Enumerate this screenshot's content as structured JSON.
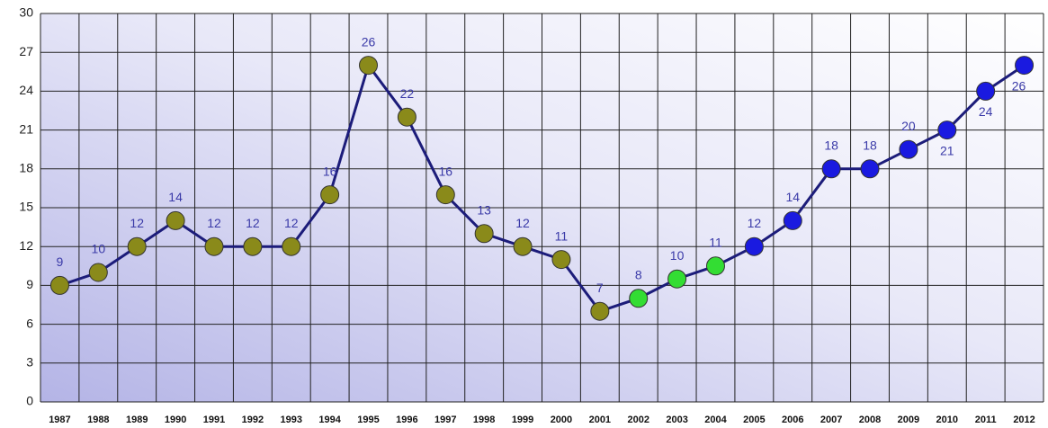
{
  "chart_data": {
    "type": "line",
    "categories": [
      "1987",
      "1988",
      "1989",
      "1990",
      "1991",
      "1992",
      "1993",
      "1994",
      "1995",
      "1996",
      "1997",
      "1998",
      "1999",
      "2000",
      "2001",
      "2002",
      "2003",
      "2004",
      "2005",
      "2006",
      "2007",
      "2008",
      "2009",
      "2010",
      "2011",
      "2012"
    ],
    "values": [
      9,
      10,
      12,
      14,
      12,
      12,
      12,
      16,
      26,
      22,
      16,
      13,
      12,
      11,
      7,
      8,
      9.5,
      10.5,
      12,
      14,
      18,
      18,
      19.5,
      21,
      24,
      26
    ],
    "value_labels": [
      "9",
      "10",
      "12",
      "14",
      "12",
      "12",
      "12",
      "16",
      "26",
      "22",
      "16",
      "13",
      "12",
      "11",
      "7",
      "8",
      "10",
      "11",
      "12",
      "14",
      "18",
      "18",
      "20",
      "21",
      "24",
      "26"
    ],
    "color": "#1c1c7a",
    "point_colors": [
      "#8a8a1a",
      "#8a8a1a",
      "#8a8a1a",
      "#8a8a1a",
      "#8a8a1a",
      "#8a8a1a",
      "#8a8a1a",
      "#8a8a1a",
      "#8a8a1a",
      "#8a8a1a",
      "#8a8a1a",
      "#8a8a1a",
      "#8a8a1a",
      "#8a8a1a",
      "#8a8a1a",
      "#33dd33",
      "#33dd33",
      "#33dd33",
      "#1a1ae0",
      "#1a1ae0",
      "#1a1ae0",
      "#1a1ae0",
      "#1a1ae0",
      "#1a1ae0",
      "#1a1ae0",
      "#1a1ae0"
    ],
    "ylim": [
      0,
      30
    ],
    "yticks": [
      0,
      3,
      6,
      9,
      12,
      15,
      18,
      21,
      24,
      27,
      30
    ],
    "grid": true
  }
}
